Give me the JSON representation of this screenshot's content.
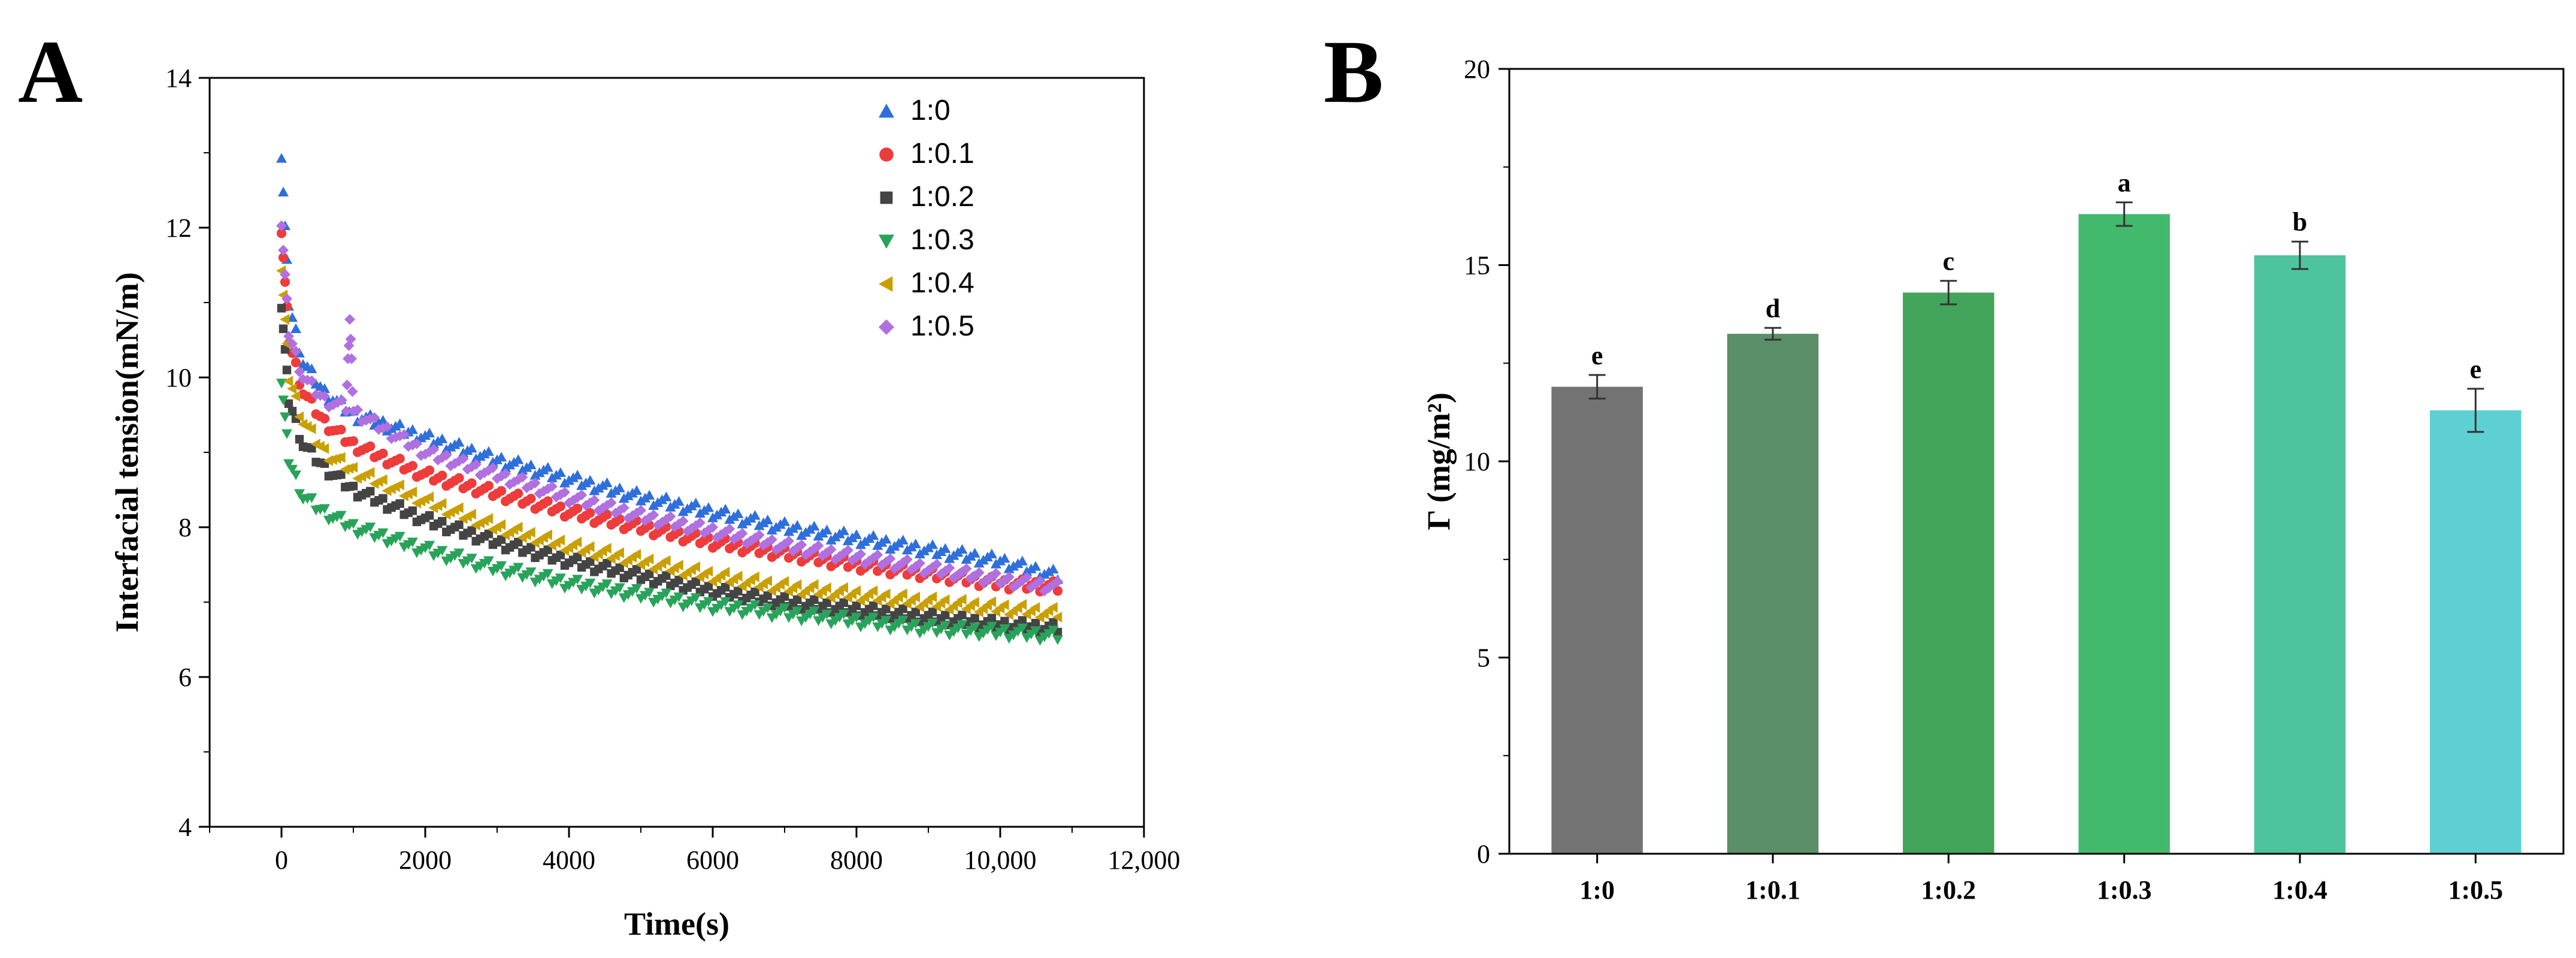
{
  "chart_data": [
    {
      "panel_label": "A",
      "type": "scatter",
      "xlabel": "Time(s)",
      "ylabel": "Interfacial tension(mN/m)",
      "xlim": [
        -1000,
        12000
      ],
      "ylim": [
        4,
        14
      ],
      "xticks": [
        "0",
        "2000",
        "4000",
        "6000",
        "8000",
        "10,000",
        "12,000"
      ],
      "xtick_values": [
        0,
        2000,
        4000,
        6000,
        8000,
        10000,
        12000
      ],
      "yticks": [
        "4",
        "6",
        "8",
        "10",
        "12",
        "14"
      ],
      "ytick_values": [
        4,
        6,
        8,
        10,
        12,
        14
      ],
      "legend_position": "top-right",
      "series": [
        {
          "name": "1:0",
          "color": "#2f6fdc",
          "marker": "triangle-up",
          "x": [
            0,
            100,
            300,
            600,
            1000,
            2000,
            3000,
            4000,
            5000,
            6000,
            7000,
            8000,
            9000,
            10000,
            10800
          ],
          "y": [
            13.0,
            11.0,
            10.2,
            9.8,
            9.5,
            9.2,
            8.9,
            8.65,
            8.4,
            8.2,
            8.0,
            7.85,
            7.7,
            7.55,
            7.35
          ]
        },
        {
          "name": "1:0.1",
          "color": "#ee3b3b",
          "marker": "circle",
          "x": [
            0,
            100,
            300,
            600,
            1000,
            2000,
            3000,
            4000,
            5000,
            6000,
            7000,
            8000,
            9000,
            10000,
            10800
          ],
          "y": [
            12.0,
            10.5,
            9.8,
            9.4,
            9.1,
            8.7,
            8.45,
            8.2,
            8.0,
            7.8,
            7.65,
            7.5,
            7.38,
            7.25,
            7.2
          ]
        },
        {
          "name": "1:0.2",
          "color": "#444444",
          "marker": "square",
          "x": [
            0,
            100,
            300,
            600,
            1000,
            2000,
            3000,
            4000,
            5000,
            6000,
            7000,
            8000,
            9000,
            10000,
            10800
          ],
          "y": [
            11.0,
            9.7,
            9.1,
            8.8,
            8.5,
            8.1,
            7.8,
            7.55,
            7.35,
            7.15,
            7.0,
            6.9,
            6.8,
            6.7,
            6.65
          ]
        },
        {
          "name": "1:0.3",
          "color": "#2aa35a",
          "marker": "triangle-down",
          "x": [
            0,
            100,
            300,
            600,
            1000,
            2000,
            3000,
            4000,
            5000,
            6000,
            7000,
            8000,
            9000,
            10000,
            10800
          ],
          "y": [
            10.0,
            8.9,
            8.4,
            8.2,
            8.0,
            7.7,
            7.45,
            7.25,
            7.1,
            6.95,
            6.85,
            6.75,
            6.65,
            6.6,
            6.55
          ]
        },
        {
          "name": "1:0.4",
          "color": "#c9a000",
          "marker": "triangle-left",
          "x": [
            0,
            100,
            300,
            600,
            1000,
            2000,
            3000,
            4000,
            5000,
            6000,
            7000,
            8000,
            9000,
            10000,
            10800
          ],
          "y": [
            11.5,
            10.0,
            9.4,
            9.0,
            8.75,
            8.35,
            8.0,
            7.75,
            7.55,
            7.35,
            7.2,
            7.1,
            7.0,
            6.92,
            6.85
          ]
        },
        {
          "name": "1:0.5",
          "color": "#b070e0",
          "marker": "diamond",
          "x": [
            0,
            100,
            300,
            600,
            900,
            950,
            1000,
            2000,
            3000,
            4000,
            5000,
            6000,
            7000,
            8000,
            9000,
            10000,
            10800
          ],
          "y": [
            12.1,
            10.6,
            10.0,
            9.7,
            9.6,
            10.8,
            9.55,
            9.0,
            8.7,
            8.4,
            8.15,
            7.95,
            7.75,
            7.6,
            7.45,
            7.3,
            7.2
          ]
        }
      ]
    },
    {
      "panel_label": "B",
      "type": "bar",
      "ylabel": "Γ  (mg/m²)",
      "ylim": [
        0,
        20
      ],
      "yticks": [
        "0",
        "5",
        "10",
        "15",
        "20"
      ],
      "ytick_values": [
        0,
        5,
        10,
        15,
        20
      ],
      "categories": [
        "1:0",
        "1:0.1",
        "1:0.2",
        "1:0.3",
        "1:0.4",
        "1:0.5"
      ],
      "values": [
        11.9,
        13.25,
        14.3,
        16.3,
        15.25,
        11.3
      ],
      "errors": [
        0.3,
        0.15,
        0.3,
        0.3,
        0.35,
        0.55
      ],
      "letters": [
        "e",
        "d",
        "c",
        "a",
        "b",
        "e"
      ],
      "colors": [
        "#737373",
        "#5a8f69",
        "#43a55b",
        "#42b96d",
        "#4dc49d",
        "#5ecfd2"
      ]
    }
  ]
}
